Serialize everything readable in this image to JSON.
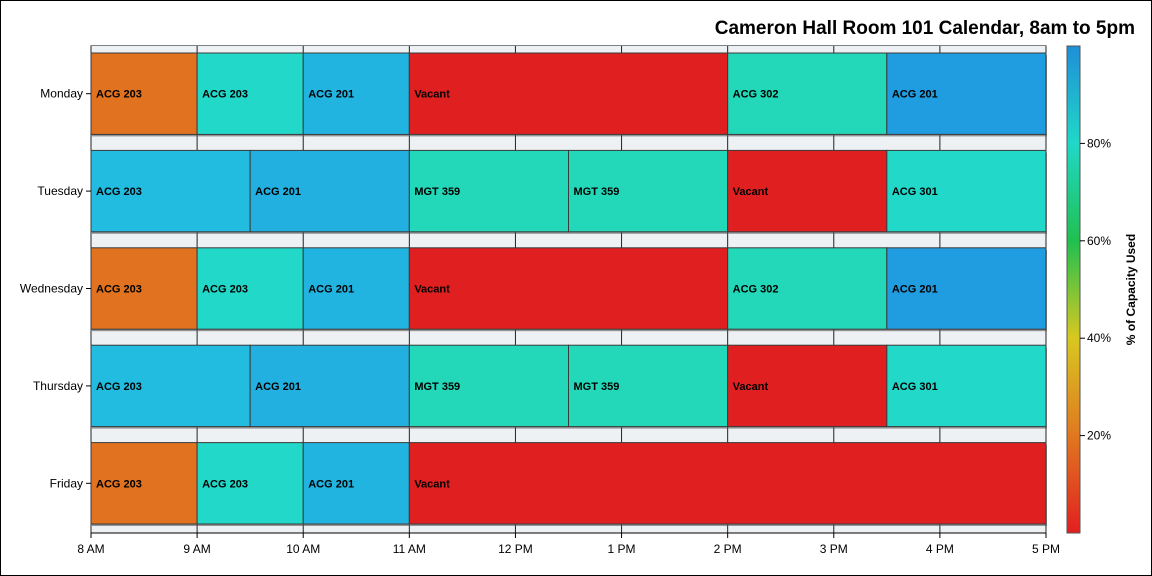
{
  "chart_data": {
    "type": "bar",
    "orientation": "horizontal",
    "title": "Cameron Hall Room 101 Calendar, 8am to 5pm",
    "xlabel": "",
    "ylabel": "",
    "x_ticks": [
      "8 AM",
      "9 AM",
      "10 AM",
      "11 AM",
      "12 PM",
      "1 PM",
      "2 PM",
      "3 PM",
      "4 PM",
      "5 PM"
    ],
    "xlim": [
      8,
      17
    ],
    "categories": [
      "Monday",
      "Tuesday",
      "Wednesday",
      "Thursday",
      "Friday"
    ],
    "colorbar": {
      "title": "% of Capacity Used",
      "ticks": [
        "20%",
        "40%",
        "60%",
        "80%"
      ],
      "range": [
        0,
        100
      ],
      "colors": [
        "#e21f1f",
        "#e07820",
        "#d8c820",
        "#20c050",
        "#20d8c8",
        "#1e8fd8"
      ]
    },
    "bars": [
      {
        "day": "Monday",
        "start": 8,
        "end": 9,
        "label": "ACG 203",
        "color": "#e07220"
      },
      {
        "day": "Monday",
        "start": 9,
        "end": 10,
        "label": "ACG 203",
        "color": "#22d8c8"
      },
      {
        "day": "Monday",
        "start": 10,
        "end": 11,
        "label": "ACG 201",
        "color": "#22b4e0"
      },
      {
        "day": "Monday",
        "start": 11,
        "end": 14,
        "label": "Vacant",
        "color": "#e02020"
      },
      {
        "day": "Monday",
        "start": 14,
        "end": 15.5,
        "label": "ACG 302",
        "color": "#22d8b8"
      },
      {
        "day": "Monday",
        "start": 15.5,
        "end": 17,
        "label": "ACG 201",
        "color": "#209ce0"
      },
      {
        "day": "Tuesday",
        "start": 8,
        "end": 9.5,
        "label": "ACG 203",
        "color": "#22bce0"
      },
      {
        "day": "Tuesday",
        "start": 9.5,
        "end": 11,
        "label": "ACG 201",
        "color": "#22b0e0"
      },
      {
        "day": "Tuesday",
        "start": 11,
        "end": 12.5,
        "label": "MGT 359",
        "color": "#22d8b8"
      },
      {
        "day": "Tuesday",
        "start": 12.5,
        "end": 14,
        "label": "MGT 359",
        "color": "#22d8b8"
      },
      {
        "day": "Tuesday",
        "start": 14,
        "end": 15.5,
        "label": "Vacant",
        "color": "#e02020"
      },
      {
        "day": "Tuesday",
        "start": 15.5,
        "end": 17,
        "label": "ACG 301",
        "color": "#22d8c8"
      },
      {
        "day": "Wednesday",
        "start": 8,
        "end": 9,
        "label": "ACG 203",
        "color": "#e07220"
      },
      {
        "day": "Wednesday",
        "start": 9,
        "end": 10,
        "label": "ACG 203",
        "color": "#22d8c8"
      },
      {
        "day": "Wednesday",
        "start": 10,
        "end": 11,
        "label": "ACG 201",
        "color": "#22b4e0"
      },
      {
        "day": "Wednesday",
        "start": 11,
        "end": 14,
        "label": "Vacant",
        "color": "#e02020"
      },
      {
        "day": "Wednesday",
        "start": 14,
        "end": 15.5,
        "label": "ACG 302",
        "color": "#22d8b8"
      },
      {
        "day": "Wednesday",
        "start": 15.5,
        "end": 17,
        "label": "ACG 201",
        "color": "#209ce0"
      },
      {
        "day": "Thursday",
        "start": 8,
        "end": 9.5,
        "label": "ACG 203",
        "color": "#22bce0"
      },
      {
        "day": "Thursday",
        "start": 9.5,
        "end": 11,
        "label": "ACG 201",
        "color": "#22b0e0"
      },
      {
        "day": "Thursday",
        "start": 11,
        "end": 12.5,
        "label": "MGT 359",
        "color": "#22d8b8"
      },
      {
        "day": "Thursday",
        "start": 12.5,
        "end": 14,
        "label": "MGT 359",
        "color": "#22d8b8"
      },
      {
        "day": "Thursday",
        "start": 14,
        "end": 15.5,
        "label": "Vacant",
        "color": "#e02020"
      },
      {
        "day": "Thursday",
        "start": 15.5,
        "end": 17,
        "label": "ACG 301",
        "color": "#22d8c8"
      },
      {
        "day": "Friday",
        "start": 8,
        "end": 9,
        "label": "ACG 203",
        "color": "#e07220"
      },
      {
        "day": "Friday",
        "start": 9,
        "end": 10,
        "label": "ACG 203",
        "color": "#22d8c8"
      },
      {
        "day": "Friday",
        "start": 10,
        "end": 11,
        "label": "ACG 201",
        "color": "#22b4e0"
      },
      {
        "day": "Friday",
        "start": 11,
        "end": 17,
        "label": "Vacant",
        "color": "#e02020"
      }
    ],
    "grid": true,
    "legend": "right"
  }
}
